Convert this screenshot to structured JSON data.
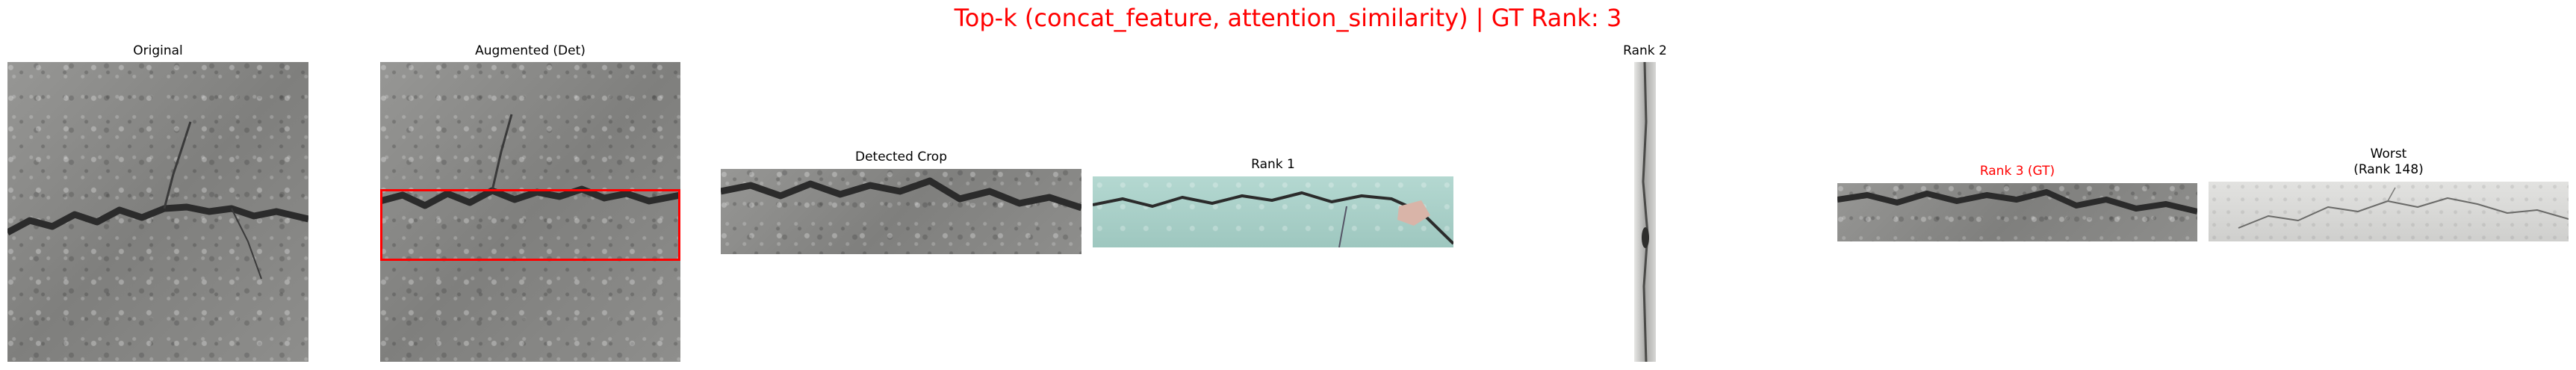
{
  "figure": {
    "title": "Top-k (concat_feature, attention_similarity) | GT Rank: 3",
    "title_color": "#ff0000",
    "panels": [
      {
        "title": "Original",
        "title_color": "#000000"
      },
      {
        "title": "Augmented (Det)",
        "title_color": "#000000",
        "box_color": "#ff0000"
      },
      {
        "title": "Detected Crop",
        "title_color": "#000000"
      },
      {
        "title": "Rank 1",
        "title_color": "#000000"
      },
      {
        "title": "Rank 2",
        "title_color": "#000000"
      },
      {
        "title": "Rank 3 (GT)",
        "title_color": "#ff0000"
      },
      {
        "title": "Worst\n(Rank 148)",
        "title_color": "#000000"
      }
    ]
  }
}
